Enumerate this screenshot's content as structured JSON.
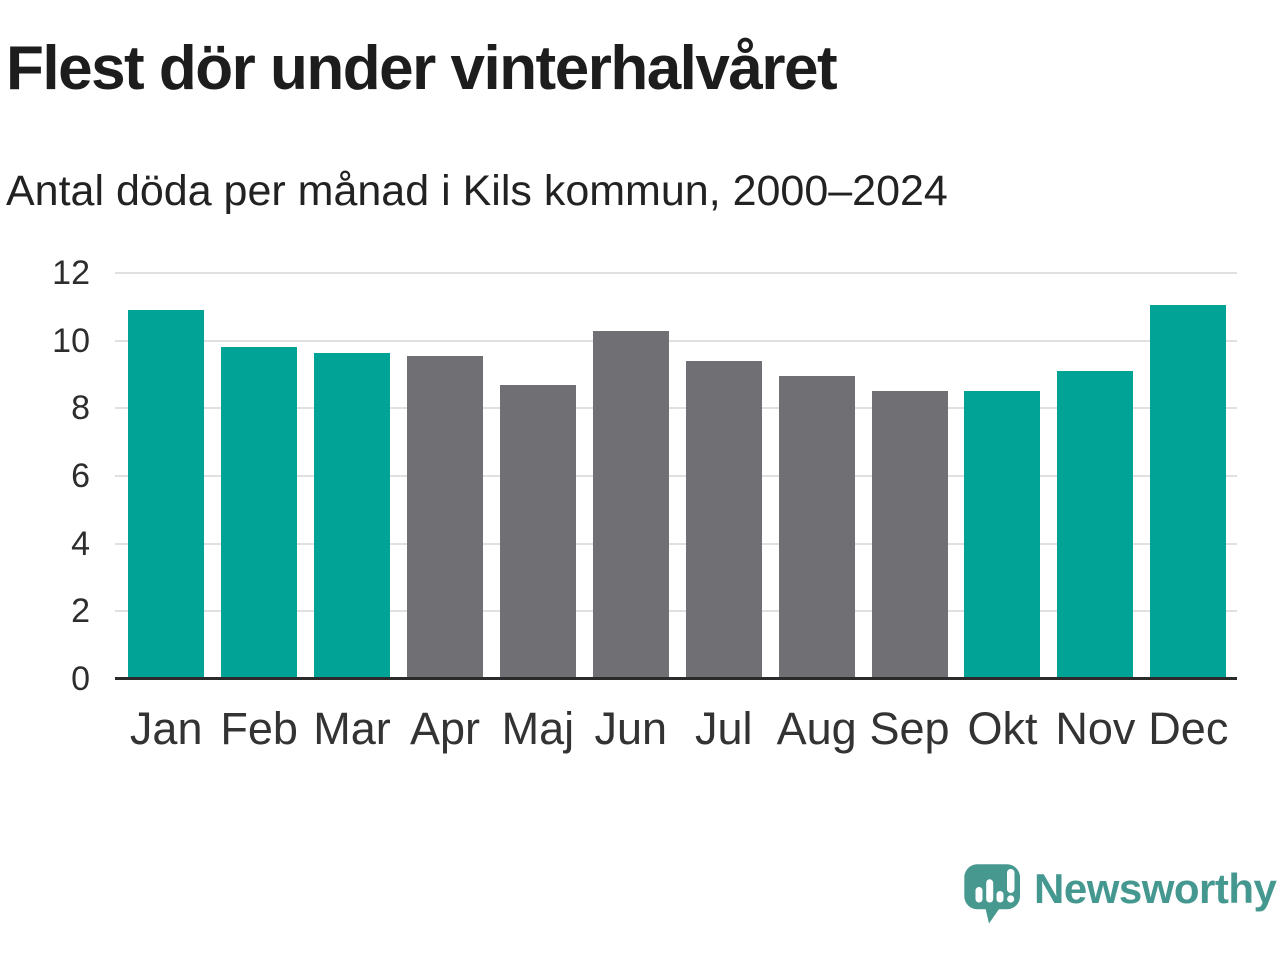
{
  "title": "Flest dör under vinterhalvåret",
  "subtitle": "Antal döda per månad i Kils kommun, 2000–2024",
  "footer": {
    "brand_name": "Newsworthy",
    "logo_icon": "newsworthy-speech-bubble-bar-chart-icon"
  },
  "colors": {
    "highlight_teal": "#00a396",
    "neutral_gray": "#6f6f74",
    "gridline": "#e0e0e0",
    "baseline": "#2b2b2b",
    "axis_text": "#2d2d2d",
    "title_text": "#1d1d1d",
    "brand_teal": "#45988f"
  },
  "chart_data": {
    "type": "bar",
    "title": "Flest dör under vinterhalvåret",
    "subtitle": "Antal döda per månad i Kils kommun, 2000–2024",
    "categories": [
      "Jan",
      "Feb",
      "Mar",
      "Apr",
      "Maj",
      "Jun",
      "Jul",
      "Aug",
      "Sep",
      "Okt",
      "Nov",
      "Dec"
    ],
    "values": [
      10.9,
      9.8,
      9.65,
      9.55,
      8.7,
      10.3,
      9.4,
      8.95,
      8.5,
      8.5,
      9.1,
      11.05
    ],
    "highlighted_months": [
      "Jan",
      "Feb",
      "Mar",
      "Okt",
      "Nov",
      "Dec"
    ],
    "highlight_color": "#00a396",
    "default_color": "#6f6f74",
    "xlabel": "",
    "ylabel": "",
    "ylim": [
      0,
      12
    ],
    "yticks": [
      0,
      2,
      4,
      6,
      8,
      10,
      12
    ],
    "grid": "horizontal",
    "legend": "none"
  }
}
